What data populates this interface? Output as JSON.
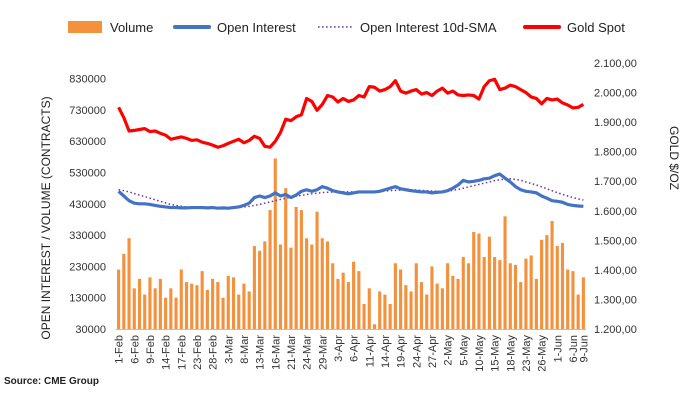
{
  "source": "Source: CME Group",
  "chart_data": {
    "type": "bar+line",
    "legend": {
      "placement": "top",
      "items": [
        {
          "key": "volume",
          "label": "Volume",
          "color": "#F4913D",
          "style": "bar"
        },
        {
          "key": "open_interest",
          "label": "Open Interest",
          "color": "#4472C4",
          "style": "line"
        },
        {
          "key": "sma",
          "label": "Open Interest 10d-SMA",
          "color": "#7030A0",
          "style": "dotted"
        },
        {
          "key": "gold",
          "label": "Gold Spot",
          "color": "#FF0000",
          "style": "line"
        }
      ]
    },
    "y_left": {
      "title": "OPEN INTEREST / VOLUME (CONTRACTS)",
      "min": 30000,
      "max": 880000,
      "ticks": [
        30000,
        130000,
        230000,
        330000,
        430000,
        530000,
        630000,
        730000,
        830000
      ],
      "tick_labels": [
        "30000",
        "130000",
        "230000",
        "330000",
        "430000",
        "530000",
        "630000",
        "730000",
        "830000"
      ]
    },
    "y_right": {
      "title": "GOLD $/OZ",
      "min": 1200,
      "max": 2100,
      "ticks": [
        1200,
        1300,
        1400,
        1500,
        1600,
        1700,
        1800,
        1900,
        2000,
        2100
      ],
      "tick_labels": [
        "1.200,00",
        "1.300,00",
        "1.400,00",
        "1.500,00",
        "1.600,00",
        "1.700,00",
        "1.800,00",
        "1.900,00",
        "2.000,00",
        "2.100,00"
      ]
    },
    "x_tick_labels": [
      "1-Feb",
      "6-Feb",
      "9-Feb",
      "14-Feb",
      "17-Feb",
      "23-Feb",
      "28-Feb",
      "3-Mar",
      "8-Mar",
      "13-Mar",
      "16-Mar",
      "21-Mar",
      "24-Mar",
      "29-Mar",
      "3-Apr",
      "6-Apr",
      "11-Apr",
      "14-Apr",
      "19-Apr",
      "24-Apr",
      "27-Apr",
      "2-May",
      "5-May",
      "10-May",
      "15-May",
      "18-May",
      "23-May",
      "26-May",
      "1-Jun",
      "6-Jun",
      "9-Jun"
    ],
    "x_tick_index": [
      0,
      3,
      6,
      9,
      12,
      15,
      18,
      21,
      24,
      27,
      30,
      33,
      36,
      39,
      42,
      45,
      48,
      51,
      54,
      57,
      60,
      63,
      66,
      69,
      72,
      75,
      78,
      81,
      84,
      87,
      89
    ],
    "volume": [
      220000,
      270000,
      320000,
      160000,
      190000,
      140000,
      195000,
      160000,
      190000,
      130000,
      160000,
      130000,
      220000,
      180000,
      175000,
      170000,
      215000,
      155000,
      190000,
      180000,
      130000,
      200000,
      195000,
      140000,
      175000,
      150000,
      295000,
      280000,
      310000,
      410000,
      575000,
      300000,
      480000,
      290000,
      420000,
      410000,
      320000,
      300000,
      405000,
      320000,
      310000,
      240000,
      190000,
      210000,
      180000,
      245000,
      215000,
      110000,
      160000,
      45000,
      150000,
      140000,
      110000,
      240000,
      220000,
      170000,
      150000,
      240000,
      180000,
      140000,
      230000,
      175000,
      160000,
      240000,
      200000,
      190000,
      260000,
      240000,
      340000,
      335000,
      260000,
      325000,
      260000,
      250000,
      390000,
      240000,
      235000,
      180000,
      255000,
      265000,
      190000,
      315000,
      330000,
      375000,
      295000,
      305000,
      220000,
      215000,
      140000,
      195000
    ],
    "open_interest": [
      470000,
      455000,
      440000,
      432000,
      430000,
      430000,
      428000,
      425000,
      422000,
      420000,
      418000,
      418000,
      417000,
      417000,
      418000,
      418000,
      418000,
      417000,
      418000,
      416000,
      417000,
      416000,
      418000,
      420000,
      425000,
      432000,
      450000,
      455000,
      450000,
      455000,
      465000,
      455000,
      460000,
      450000,
      458000,
      470000,
      475000,
      470000,
      475000,
      485000,
      480000,
      472000,
      468000,
      465000,
      462000,
      465000,
      468000,
      468000,
      468000,
      468000,
      470000,
      475000,
      480000,
      485000,
      478000,
      475000,
      472000,
      470000,
      468000,
      468000,
      465000,
      467000,
      468000,
      472000,
      480000,
      490000,
      505000,
      500000,
      502000,
      505000,
      510000,
      512000,
      520000,
      525000,
      512000,
      500000,
      485000,
      475000,
      470000,
      468000,
      465000,
      455000,
      448000,
      440000,
      438000,
      435000,
      428000,
      425000,
      423000,
      422000
    ],
    "sma_oi": [
      475000,
      472000,
      468000,
      463000,
      458000,
      453000,
      448000,
      443000,
      438000,
      433000,
      428000,
      425000,
      422000,
      420000,
      419000,
      418000,
      417000,
      417000,
      417000,
      417000,
      417000,
      417000,
      417000,
      418000,
      420000,
      422000,
      425000,
      428000,
      432000,
      436000,
      440000,
      444000,
      448000,
      451000,
      454000,
      457000,
      460000,
      462000,
      464000,
      466000,
      467000,
      468000,
      468000,
      468000,
      468000,
      468000,
      468000,
      468000,
      469000,
      469000,
      470000,
      471000,
      472000,
      473000,
      474000,
      475000,
      475000,
      474000,
      473000,
      472000,
      471000,
      470000,
      470000,
      471000,
      473000,
      476000,
      480000,
      484000,
      488000,
      492000,
      496000,
      500000,
      504000,
      507000,
      509000,
      510000,
      508000,
      505000,
      500000,
      495000,
      490000,
      484000,
      478000,
      472000,
      466000,
      460000,
      455000,
      450000,
      446000,
      442000
    ],
    "gold": [
      1950,
      1915,
      1870,
      1872,
      1875,
      1878,
      1868,
      1870,
      1862,
      1856,
      1842,
      1846,
      1850,
      1845,
      1838,
      1840,
      1832,
      1828,
      1822,
      1815,
      1820,
      1828,
      1835,
      1842,
      1830,
      1838,
      1852,
      1845,
      1818,
      1815,
      1835,
      1865,
      1910,
      1905,
      1918,
      1925,
      1980,
      1970,
      1940,
      1960,
      1990,
      1985,
      1968,
      1980,
      1970,
      1975,
      1990,
      1985,
      2020,
      2018,
      2005,
      2010,
      2020,
      2040,
      2005,
      1998,
      2005,
      2010,
      1995,
      2000,
      1990,
      2005,
      2015,
      1998,
      2005,
      1992,
      1990,
      1992,
      1990,
      1978,
      2020,
      2040,
      2045,
      2010,
      2015,
      2025,
      2020,
      2010,
      2000,
      1985,
      1980,
      1962,
      1980,
      1975,
      1978,
      1965,
      1958,
      1948,
      1950,
      1960
    ]
  }
}
